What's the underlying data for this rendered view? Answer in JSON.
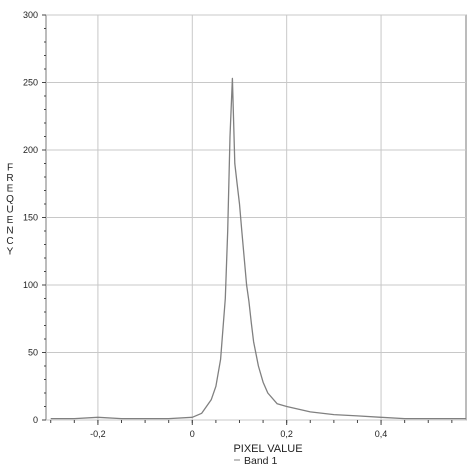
{
  "chart_data": {
    "type": "line",
    "xlabel": "PIXEL VALUE",
    "ylabel": "FREQUENCY",
    "xlim": [
      -0.31,
      0.58
    ],
    "ylim": [
      0,
      300
    ],
    "x_ticks": [
      -0.2,
      0,
      0.2,
      0.4
    ],
    "x_tick_labels": [
      "-0,2",
      "0",
      "0,2",
      "0,4"
    ],
    "y_ticks": [
      0,
      50,
      100,
      150,
      200,
      250,
      300
    ],
    "y_tick_labels": [
      "0",
      "50",
      "100",
      "150",
      "200",
      "250",
      "300"
    ],
    "grid": true,
    "legend_position": "bottom-center",
    "series": [
      {
        "name": "Band 1",
        "color": "#808080",
        "x": [
          -0.3,
          -0.25,
          -0.2,
          -0.15,
          -0.1,
          -0.05,
          0,
          0.02,
          0.04,
          0.05,
          0.06,
          0.07,
          0.075,
          0.08,
          0.085,
          0.09,
          0.095,
          0.1,
          0.105,
          0.11,
          0.115,
          0.12,
          0.125,
          0.13,
          0.14,
          0.15,
          0.16,
          0.18,
          0.2,
          0.25,
          0.3,
          0.35,
          0.4,
          0.45,
          0.5,
          0.55,
          0.58
        ],
        "y": [
          1,
          1,
          2,
          1,
          1,
          1,
          2,
          5,
          15,
          25,
          45,
          90,
          140,
          210,
          253,
          190,
          175,
          160,
          140,
          120,
          100,
          88,
          72,
          58,
          40,
          28,
          20,
          12,
          10,
          6,
          4,
          3,
          2,
          1,
          1,
          1,
          1
        ]
      }
    ]
  }
}
